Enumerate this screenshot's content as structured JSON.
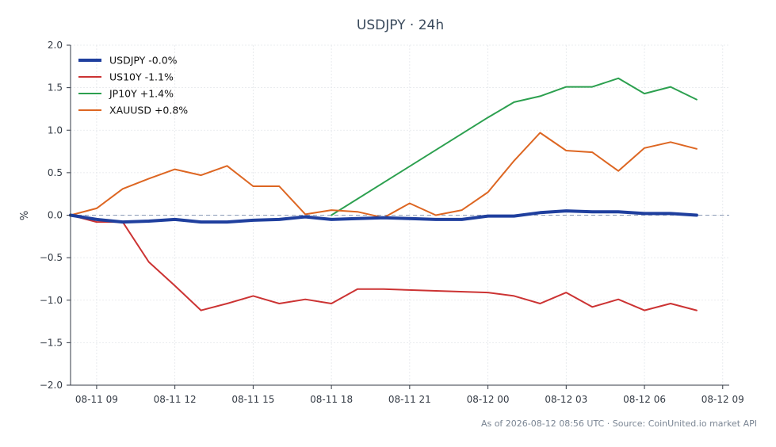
{
  "chart_data": {
    "type": "line",
    "title": "USDJPY · 24h",
    "ylabel": "%",
    "xlabel": "",
    "ylim": [
      -2.0,
      2.0
    ],
    "yticks": [
      2.0,
      1.5,
      1.0,
      0.5,
      0.0,
      -0.5,
      -1.0,
      -1.5,
      -2.0
    ],
    "ytick_labels": [
      "2.0",
      "1.5",
      "1.0",
      "0.5",
      "0.0",
      "−0.5",
      "−1.0",
      "−1.5",
      "−2.0"
    ],
    "xlim": [
      "2026-08-11T08:00",
      "2026-08-12T09:15"
    ],
    "xticks": [
      "2026-08-11T09:00",
      "2026-08-11T12:00",
      "2026-08-11T15:00",
      "2026-08-11T18:00",
      "2026-08-11T21:00",
      "2026-08-12T00:00",
      "2026-08-12T03:00",
      "2026-08-12T06:00",
      "2026-08-12T09:00"
    ],
    "xtick_labels": [
      "08-11 09",
      "08-11 12",
      "08-11 15",
      "08-11 18",
      "08-11 21",
      "08-12 00",
      "08-12 03",
      "08-12 06",
      "08-12 09"
    ],
    "grid": true,
    "legend_position": "top-left",
    "zero_line": true,
    "series": [
      {
        "name": "USDJPY -0.0%",
        "color": "#1f3f9e",
        "width": 4,
        "x": [
          "2026-08-11T08:00",
          "2026-08-11T09:00",
          "2026-08-11T10:00",
          "2026-08-11T11:00",
          "2026-08-11T12:00",
          "2026-08-11T13:00",
          "2026-08-11T14:00",
          "2026-08-11T15:00",
          "2026-08-11T16:00",
          "2026-08-11T17:00",
          "2026-08-11T18:00",
          "2026-08-11T19:00",
          "2026-08-11T20:00",
          "2026-08-11T21:00",
          "2026-08-11T22:00",
          "2026-08-11T23:00",
          "2026-08-12T00:00",
          "2026-08-12T01:00",
          "2026-08-12T02:00",
          "2026-08-12T03:00",
          "2026-08-12T04:00",
          "2026-08-12T05:00",
          "2026-08-12T06:00",
          "2026-08-12T07:00",
          "2026-08-12T08:00"
        ],
        "y": [
          0.0,
          -0.05,
          -0.08,
          -0.07,
          -0.05,
          -0.08,
          -0.08,
          -0.06,
          -0.05,
          -0.02,
          -0.05,
          -0.04,
          -0.03,
          -0.04,
          -0.05,
          -0.05,
          -0.01,
          -0.01,
          0.03,
          0.05,
          0.04,
          0.04,
          0.02,
          0.02,
          0.0
        ]
      },
      {
        "name": "US10Y -1.1%",
        "color": "#cc3333",
        "width": 2,
        "x": [
          "2026-08-11T08:00",
          "2026-08-11T09:00",
          "2026-08-11T10:00",
          "2026-08-11T11:00",
          "2026-08-11T12:00",
          "2026-08-11T13:00",
          "2026-08-11T14:00",
          "2026-08-11T15:00",
          "2026-08-11T16:00",
          "2026-08-11T17:00",
          "2026-08-11T18:00",
          "2026-08-11T19:00",
          "2026-08-11T20:00",
          "2026-08-12T00:00",
          "2026-08-12T01:00",
          "2026-08-12T02:00",
          "2026-08-12T03:00",
          "2026-08-12T04:00",
          "2026-08-12T05:00",
          "2026-08-12T06:00",
          "2026-08-12T07:00",
          "2026-08-12T08:00"
        ],
        "y": [
          0.0,
          -0.08,
          -0.08,
          -0.55,
          -0.83,
          -1.12,
          -1.04,
          -0.95,
          -1.04,
          -0.99,
          -1.04,
          -0.87,
          -0.87,
          -0.91,
          -0.95,
          -1.04,
          -0.91,
          -1.08,
          -0.99,
          -1.12,
          -1.04,
          -1.12
        ]
      },
      {
        "name": "JP10Y +1.4%",
        "color": "#2ca04f",
        "width": 2,
        "x": [
          "2026-08-11T18:00",
          "2026-08-12T00:00",
          "2026-08-12T01:00",
          "2026-08-12T02:00",
          "2026-08-12T03:00",
          "2026-08-12T04:00",
          "2026-08-12T05:00",
          "2026-08-12T06:00",
          "2026-08-12T07:00",
          "2026-08-12T08:00"
        ],
        "y": [
          0.0,
          1.15,
          1.33,
          1.4,
          1.51,
          1.51,
          1.61,
          1.43,
          1.51,
          1.36
        ]
      },
      {
        "name": "XAUUSD +0.8%",
        "color": "#dd6622",
        "width": 2,
        "x": [
          "2026-08-11T08:00",
          "2026-08-11T09:00",
          "2026-08-11T10:00",
          "2026-08-11T11:00",
          "2026-08-11T12:00",
          "2026-08-11T13:00",
          "2026-08-11T14:00",
          "2026-08-11T15:00",
          "2026-08-11T16:00",
          "2026-08-11T17:00",
          "2026-08-11T18:00",
          "2026-08-11T19:00",
          "2026-08-11T20:00",
          "2026-08-11T21:00",
          "2026-08-11T22:00",
          "2026-08-11T23:00",
          "2026-08-12T00:00",
          "2026-08-12T01:00",
          "2026-08-12T02:00",
          "2026-08-12T03:00",
          "2026-08-12T04:00",
          "2026-08-12T05:00",
          "2026-08-12T06:00",
          "2026-08-12T07:00",
          "2026-08-12T08:00"
        ],
        "y": [
          0.0,
          0.08,
          0.31,
          0.43,
          0.54,
          0.47,
          0.58,
          0.34,
          0.34,
          0.01,
          0.06,
          0.04,
          -0.03,
          0.14,
          0.0,
          0.06,
          0.27,
          0.64,
          0.97,
          0.76,
          0.74,
          0.52,
          0.79,
          0.86,
          0.78
        ]
      }
    ]
  },
  "footer": "As of 2026-08-12 08:56 UTC · Source: CoinUnited.io market API"
}
